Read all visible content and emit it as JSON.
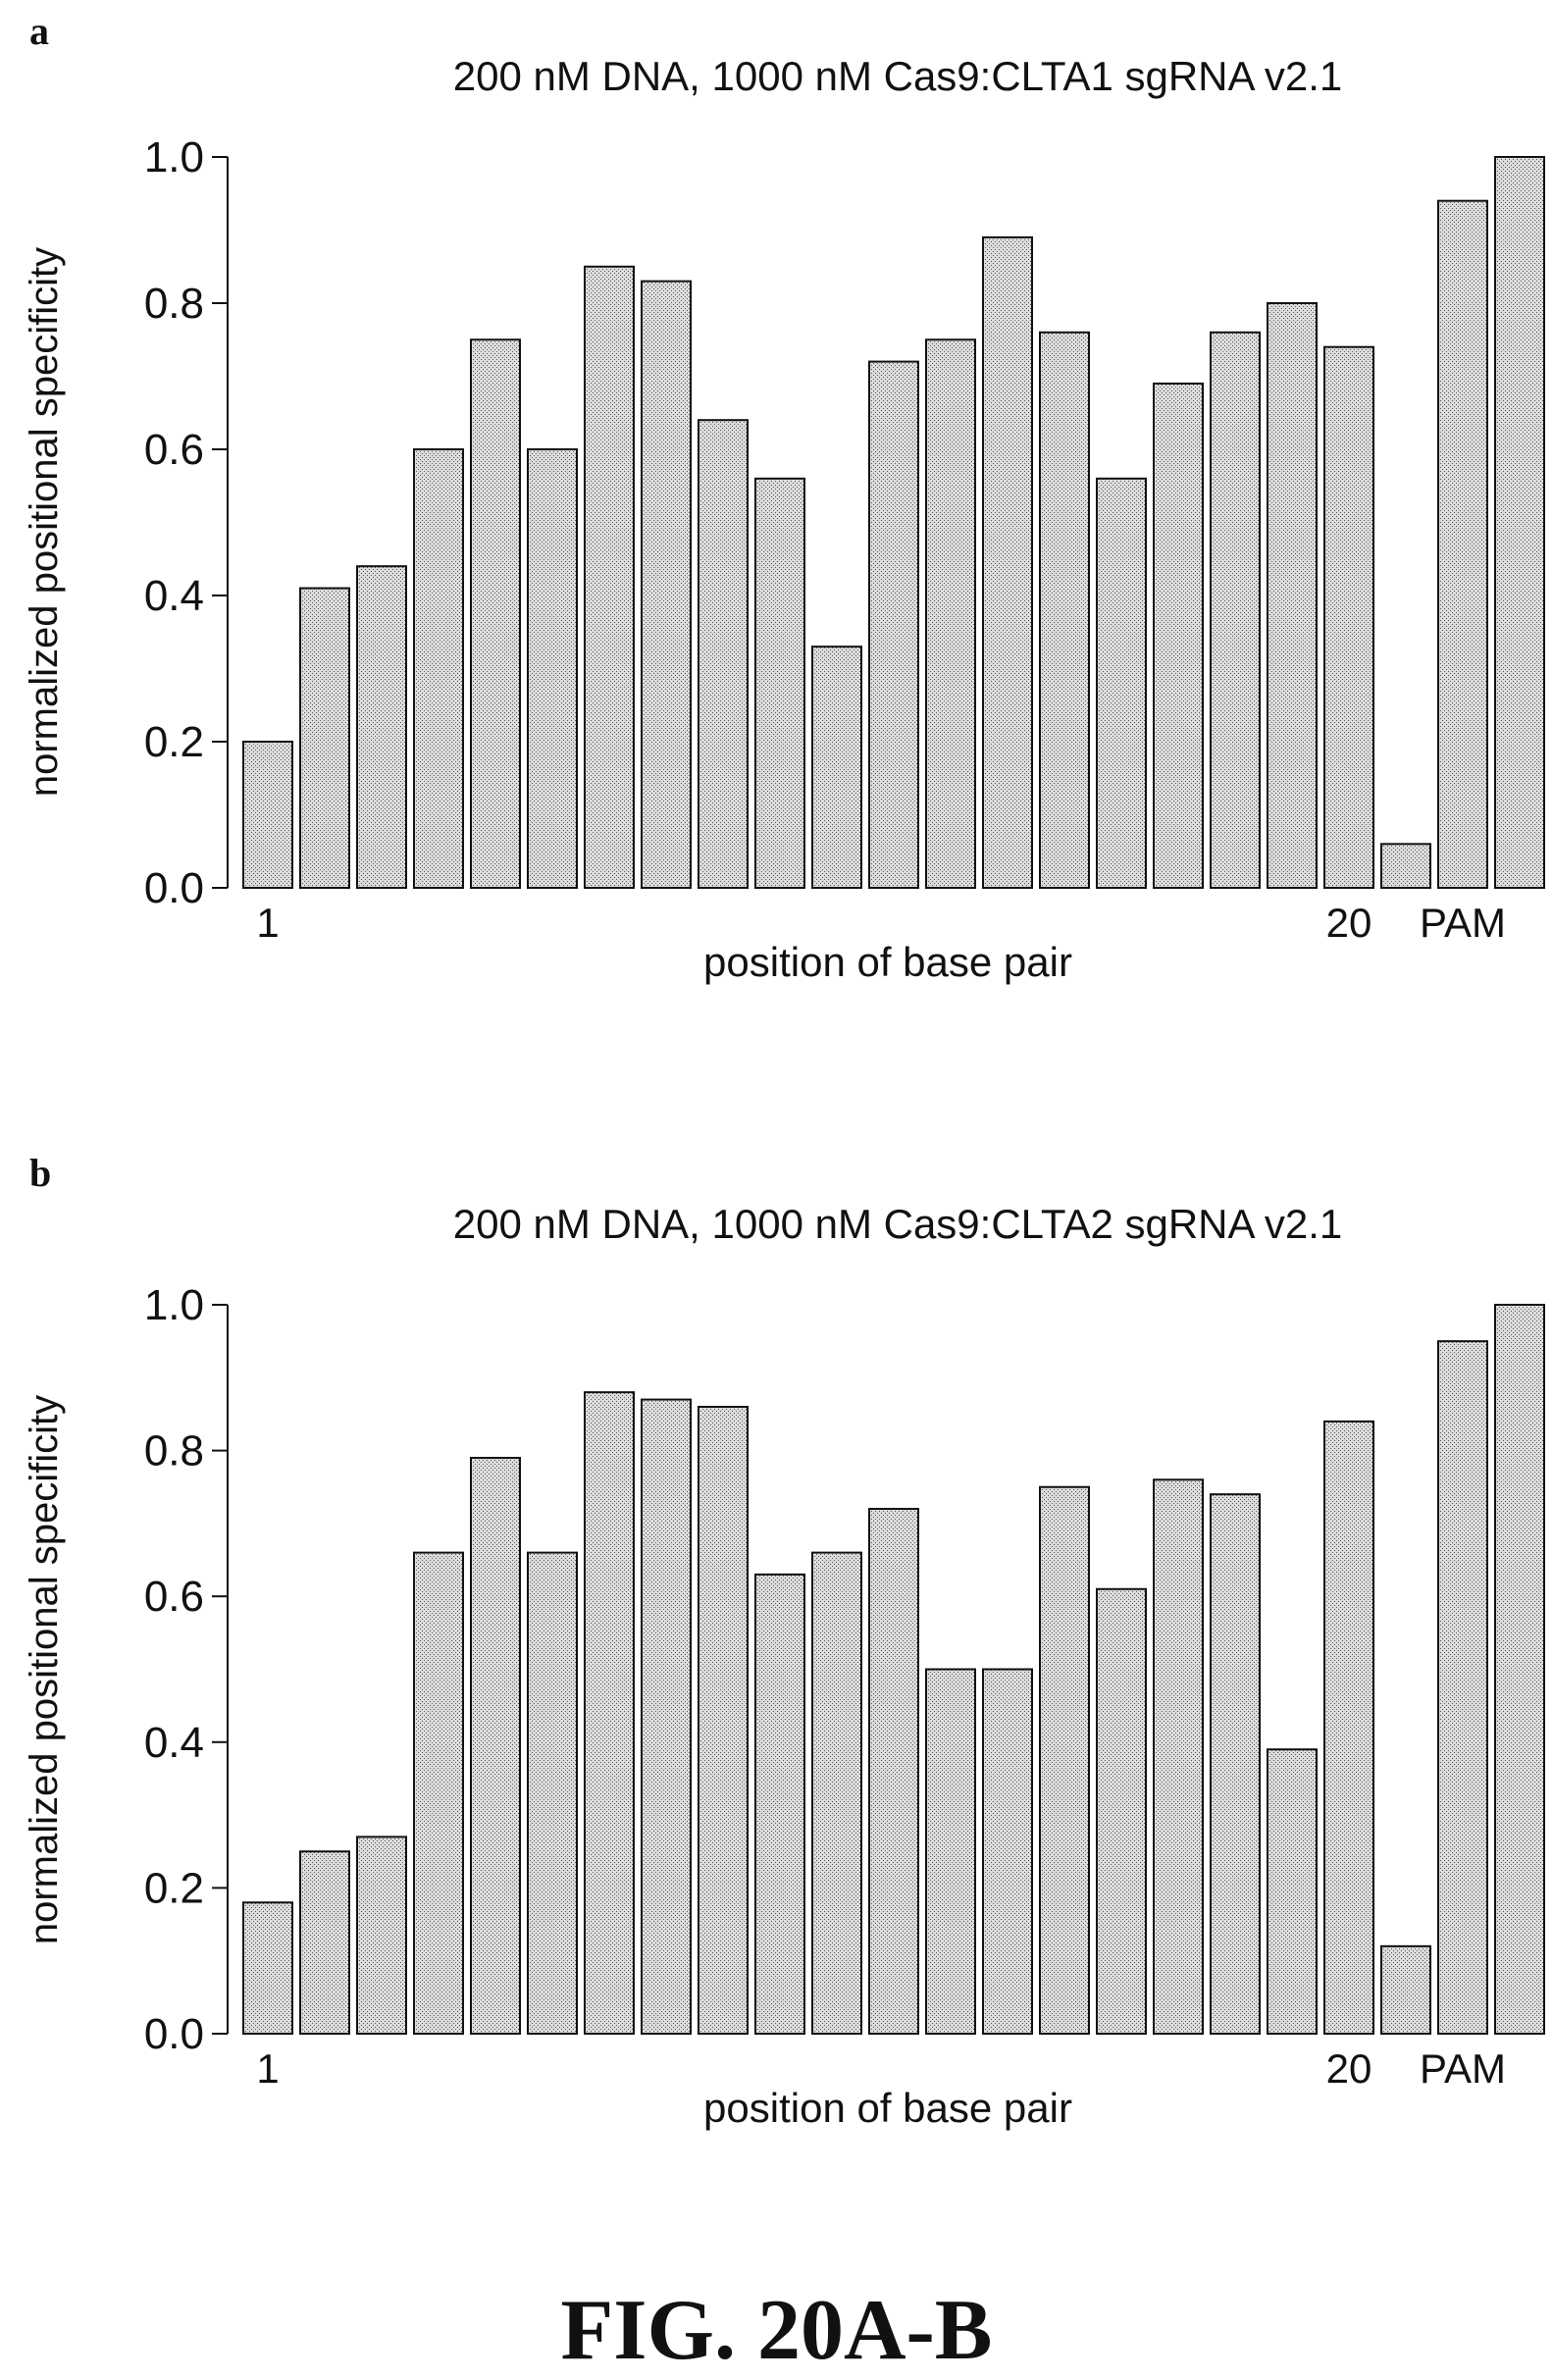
{
  "panels": [
    {
      "letter": "a"
    },
    {
      "letter": "b"
    }
  ],
  "figure_caption": "FIG. 20A-B",
  "chart_data": [
    {
      "type": "bar",
      "title": "200 nM DNA, 1000 nM Cas9:CLTA1 sgRNA v2.1",
      "xlabel": "position of base pair",
      "ylabel": "normalized positional specificity",
      "ylim": [
        0,
        1.0
      ],
      "yticks": [
        "0.0",
        "0.2",
        "0.4",
        "0.6",
        "0.8",
        "1.0"
      ],
      "xtick_labels": [
        {
          "index": 0,
          "label": "1"
        },
        {
          "index": 19,
          "label": "20"
        },
        {
          "index": 21,
          "label": "PAM"
        }
      ],
      "values": [
        0.2,
        0.41,
        0.44,
        0.6,
        0.75,
        0.6,
        0.85,
        0.83,
        0.64,
        0.56,
        0.33,
        0.72,
        0.75,
        0.89,
        0.76,
        0.56,
        0.69,
        0.76,
        0.8,
        0.74,
        0.06,
        0.94,
        1.0
      ]
    },
    {
      "type": "bar",
      "title": "200 nM DNA, 1000 nM Cas9:CLTA2 sgRNA v2.1",
      "xlabel": "position of base pair",
      "ylabel": "normalized positional specificity",
      "ylim": [
        0,
        1.0
      ],
      "yticks": [
        "0.0",
        "0.2",
        "0.4",
        "0.6",
        "0.8",
        "1.0"
      ],
      "xtick_labels": [
        {
          "index": 0,
          "label": "1"
        },
        {
          "index": 19,
          "label": "20"
        },
        {
          "index": 21,
          "label": "PAM"
        }
      ],
      "values": [
        0.18,
        0.25,
        0.27,
        0.66,
        0.79,
        0.66,
        0.88,
        0.87,
        0.86,
        0.63,
        0.66,
        0.72,
        0.5,
        0.5,
        0.75,
        0.61,
        0.76,
        0.74,
        0.39,
        0.84,
        0.12,
        0.95,
        1.0
      ]
    }
  ]
}
